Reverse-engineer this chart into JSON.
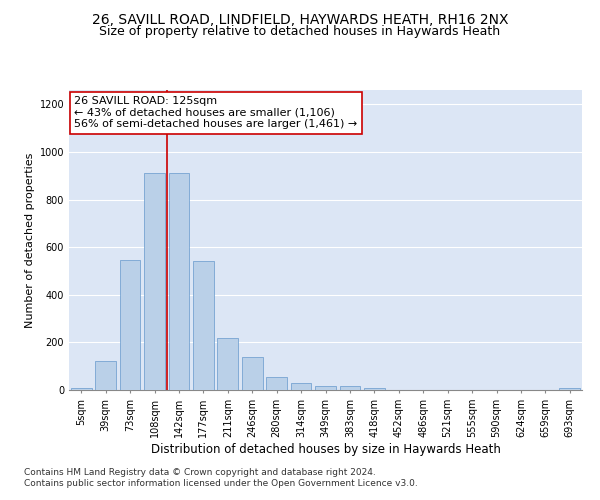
{
  "title1": "26, SAVILL ROAD, LINDFIELD, HAYWARDS HEATH, RH16 2NX",
  "title2": "Size of property relative to detached houses in Haywards Heath",
  "xlabel": "Distribution of detached houses by size in Haywards Heath",
  "ylabel": "Number of detached properties",
  "categories": [
    "5sqm",
    "39sqm",
    "73sqm",
    "108sqm",
    "142sqm",
    "177sqm",
    "211sqm",
    "246sqm",
    "280sqm",
    "314sqm",
    "349sqm",
    "383sqm",
    "418sqm",
    "452sqm",
    "486sqm",
    "521sqm",
    "555sqm",
    "590sqm",
    "624sqm",
    "659sqm",
    "693sqm"
  ],
  "values": [
    8,
    120,
    548,
    910,
    910,
    540,
    220,
    140,
    53,
    30,
    18,
    18,
    8,
    0,
    0,
    0,
    0,
    0,
    0,
    0,
    8
  ],
  "bar_color": "#bad0e8",
  "bar_edge_color": "#6699cc",
  "vline_position": 3.5,
  "vline_color": "#cc0000",
  "annotation_text": "26 SAVILL ROAD: 125sqm\n← 43% of detached houses are smaller (1,106)\n56% of semi-detached houses are larger (1,461) →",
  "annotation_box_color": "#ffffff",
  "annotation_box_edge": "#cc0000",
  "ylim": [
    0,
    1260
  ],
  "yticks": [
    0,
    200,
    400,
    600,
    800,
    1000,
    1200
  ],
  "fig_background": "#ffffff",
  "plot_background": "#dce6f5",
  "grid_color": "#ffffff",
  "footer_text": "Contains HM Land Registry data © Crown copyright and database right 2024.\nContains public sector information licensed under the Open Government Licence v3.0.",
  "title1_fontsize": 10,
  "title2_fontsize": 9,
  "xlabel_fontsize": 8.5,
  "ylabel_fontsize": 8,
  "tick_fontsize": 7,
  "annotation_fontsize": 8,
  "footer_fontsize": 6.5
}
